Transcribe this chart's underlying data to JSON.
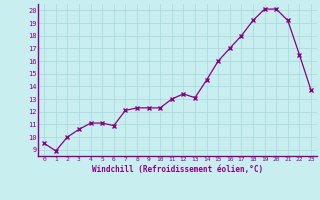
{
  "x": [
    0,
    1,
    2,
    3,
    4,
    5,
    6,
    7,
    8,
    9,
    10,
    11,
    12,
    13,
    14,
    15,
    16,
    17,
    18,
    19,
    20,
    21,
    22,
    23
  ],
  "y": [
    9.5,
    8.9,
    10.0,
    10.6,
    11.1,
    11.1,
    10.9,
    12.1,
    12.3,
    12.3,
    12.3,
    13.0,
    13.4,
    13.1,
    14.5,
    16.0,
    17.0,
    18.0,
    19.2,
    20.1,
    20.1,
    19.2,
    16.5,
    13.7
  ],
  "xlim": [
    -0.5,
    23.5
  ],
  "ylim": [
    8.5,
    20.5
  ],
  "yticks": [
    9,
    10,
    11,
    12,
    13,
    14,
    15,
    16,
    17,
    18,
    19,
    20
  ],
  "xticks": [
    0,
    1,
    2,
    3,
    4,
    5,
    6,
    7,
    8,
    9,
    10,
    11,
    12,
    13,
    14,
    15,
    16,
    17,
    18,
    19,
    20,
    21,
    22,
    23
  ],
  "xlabel": "Windchill (Refroidissement éolien,°C)",
  "line_color": "#880088",
  "marker": "x",
  "bg_color": "#c8eef0",
  "grid_color": "#a8d8dc",
  "xlabel_color": "#880088",
  "tick_color": "#880088",
  "font_family": "monospace",
  "spine_color": "#880088"
}
